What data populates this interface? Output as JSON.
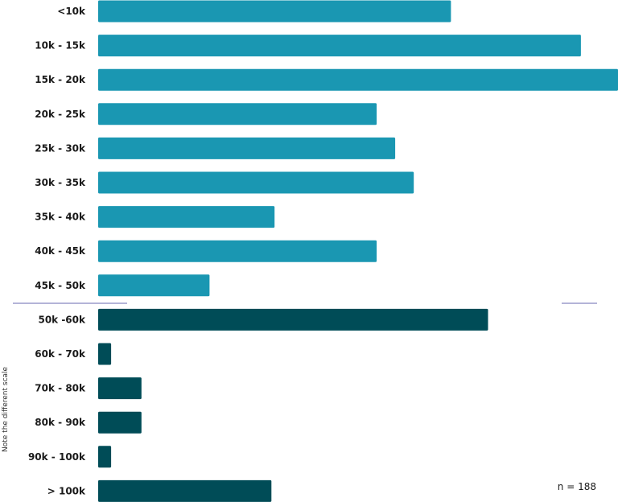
{
  "chart_data": [
    {
      "type": "bar",
      "orientation": "horizontal",
      "categories": [
        "<10k",
        "10k - 15k",
        "15k - 20k",
        "20k - 25k",
        "25k - 30k",
        "30k - 35k",
        "35k - 40k",
        "40k - 45k",
        "45k - 50k"
      ],
      "values": [
        19,
        26,
        28,
        15,
        16,
        17,
        9.5,
        15,
        6
      ],
      "xlim": [
        0,
        28
      ],
      "color": "#1a97b2",
      "grid": false,
      "legend": "none"
    },
    {
      "type": "bar",
      "orientation": "horizontal",
      "categories": [
        "50k -60k",
        "60k - 70k",
        "70k - 80k",
        "80k - 90k",
        "90k  - 100k",
        "> 100k"
      ],
      "values": [
        9,
        0.3,
        1,
        1,
        0.3,
        4
      ],
      "xlim": [
        0,
        12
      ],
      "color": "#004c57",
      "grid": false,
      "legend": "none"
    }
  ],
  "annotations": {
    "side_note": "Note the different scale",
    "sample_size": "n = 188"
  }
}
